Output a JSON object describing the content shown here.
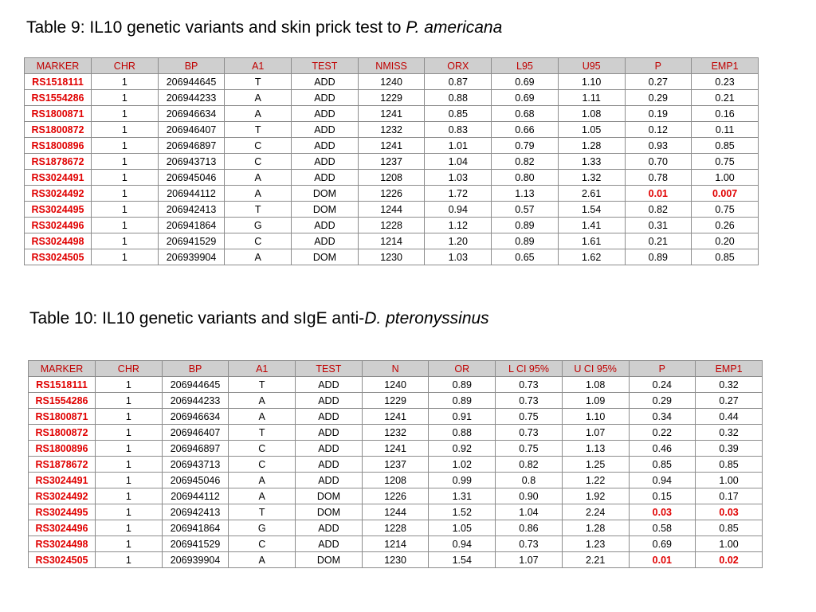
{
  "table1": {
    "title_prefix": "Table 9: IL10 genetic variants and skin prick test to ",
    "title_italic": "P. americana",
    "headers": [
      "MARKER",
      "CHR",
      "BP",
      "A1",
      "TEST",
      "NMISS",
      "ORX",
      "L95",
      "U95",
      "P",
      "EMP1"
    ],
    "rows": [
      [
        "RS1518111",
        "1",
        "206944645",
        "T",
        "ADD",
        "1240",
        "0.87",
        "0.69",
        "1.10",
        "0.27",
        "0.23"
      ],
      [
        "RS1554286",
        "1",
        "206944233",
        "A",
        "ADD",
        "1229",
        "0.88",
        "0.69",
        "1.11",
        "0.29",
        "0.21"
      ],
      [
        "RS1800871",
        "1",
        "206946634",
        "A",
        "ADD",
        "1241",
        "0.85",
        "0.68",
        "1.08",
        "0.19",
        "0.16"
      ],
      [
        "RS1800872",
        "1",
        "206946407",
        "T",
        "ADD",
        "1232",
        "0.83",
        "0.66",
        "1.05",
        "0.12",
        "0.11"
      ],
      [
        "RS1800896",
        "1",
        "206946897",
        "C",
        "ADD",
        "1241",
        "1.01",
        "0.79",
        "1.28",
        "0.93",
        "0.85"
      ],
      [
        "RS1878672",
        "1",
        "206943713",
        "C",
        "ADD",
        "1237",
        "1.04",
        "0.82",
        "1.33",
        "0.70",
        "0.75"
      ],
      [
        "RS3024491",
        "1",
        "206945046",
        "A",
        "ADD",
        "1208",
        "1.03",
        "0.80",
        "1.32",
        "0.78",
        "1.00"
      ],
      [
        "RS3024492",
        "1",
        "206944112",
        "A",
        "DOM",
        "1226",
        "1.72",
        "1.13",
        "2.61",
        "0.01",
        "0.007"
      ],
      [
        "RS3024495",
        "1",
        "206942413",
        "T",
        "DOM",
        "1244",
        "0.94",
        "0.57",
        "1.54",
        "0.82",
        "0.75"
      ],
      [
        "RS3024496",
        "1",
        "206941864",
        "G",
        "ADD",
        "1228",
        "1.12",
        "0.89",
        "1.41",
        "0.31",
        "0.26"
      ],
      [
        "RS3024498",
        "1",
        "206941529",
        "C",
        "ADD",
        "1214",
        "1.20",
        "0.89",
        "1.61",
        "0.21",
        "0.20"
      ],
      [
        "RS3024505",
        "1",
        "206939904",
        "A",
        "DOM",
        "1230",
        "1.03",
        "0.65",
        "1.62",
        "0.89",
        "0.85"
      ]
    ],
    "highlight_rows": [
      7
    ]
  },
  "table2": {
    "title_prefix": "Table 10: IL10 genetic variants and sIgE anti-",
    "title_italic": "D. pteronyssinus",
    "headers": [
      "MARKER",
      "CHR",
      "BP",
      "A1",
      "TEST",
      "N",
      "OR",
      "L CI 95%",
      "U CI 95%",
      "P",
      "EMP1"
    ],
    "rows": [
      [
        "RS1518111",
        "1",
        "206944645",
        "T",
        "ADD",
        "1240",
        "0.89",
        "0.73",
        "1.08",
        "0.24",
        "0.32"
      ],
      [
        "RS1554286",
        "1",
        "206944233",
        "A",
        "ADD",
        "1229",
        "0.89",
        "0.73",
        "1.09",
        "0.29",
        "0.27"
      ],
      [
        "RS1800871",
        "1",
        "206946634",
        "A",
        "ADD",
        "1241",
        "0.91",
        "0.75",
        "1.10",
        "0.34",
        "0.44"
      ],
      [
        "RS1800872",
        "1",
        "206946407",
        "T",
        "ADD",
        "1232",
        "0.88",
        "0.73",
        "1.07",
        "0.22",
        "0.32"
      ],
      [
        "RS1800896",
        "1",
        "206946897",
        "C",
        "ADD",
        "1241",
        "0.92",
        "0.75",
        "1.13",
        "0.46",
        "0.39"
      ],
      [
        "RS1878672",
        "1",
        "206943713",
        "C",
        "ADD",
        "1237",
        "1.02",
        "0.82",
        "1.25",
        "0.85",
        "0.85"
      ],
      [
        "RS3024491",
        "1",
        "206945046",
        "A",
        "ADD",
        "1208",
        "0.99",
        "0.8",
        "1.22",
        "0.94",
        "1.00"
      ],
      [
        "RS3024492",
        "1",
        "206944112",
        "A",
        "DOM",
        "1226",
        "1.31",
        "0.90",
        "1.92",
        "0.15",
        "0.17"
      ],
      [
        "RS3024495",
        "1",
        "206942413",
        "T",
        "DOM",
        "1244",
        "1.52",
        "1.04",
        "2.24",
        "0.03",
        "0.03"
      ],
      [
        "RS3024496",
        "1",
        "206941864",
        "G",
        "ADD",
        "1228",
        "1.05",
        "0.86",
        "1.28",
        "0.58",
        "0.85"
      ],
      [
        "RS3024498",
        "1",
        "206941529",
        "C",
        "ADD",
        "1214",
        "0.94",
        "0.73",
        "1.23",
        "0.69",
        "1.00"
      ],
      [
        "RS3024505",
        "1",
        "206939904",
        "A",
        "DOM",
        "1230",
        "1.54",
        "1.07",
        "2.21",
        "0.01",
        "0.02"
      ]
    ],
    "highlight_rows": [
      8,
      11
    ]
  },
  "colors": {
    "header_bg": "#cfcfcf",
    "header_text": "#c00000",
    "marker_text": "#e00000",
    "significant_text": "#e00000",
    "border": "#8c8c8c"
  }
}
